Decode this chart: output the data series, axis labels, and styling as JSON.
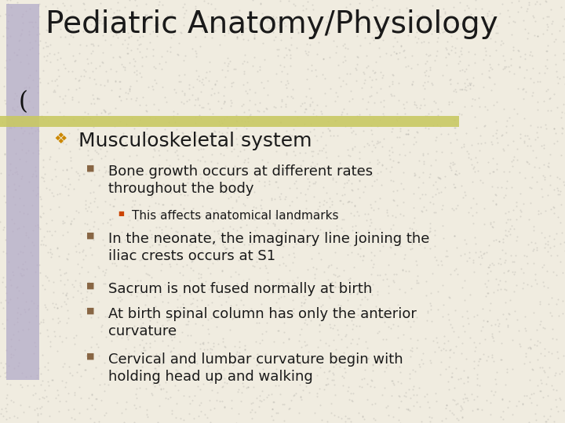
{
  "title": "Pediatric Anatomy/Physiology",
  "bg_color": "#f0ece0",
  "left_bar_color": "#b0a8c8",
  "accent_line_color": "#c8c860",
  "title_color": "#1a1a1a",
  "title_fontsize": 28,
  "bullet1_color": "#cc8800",
  "bullet2_color": "#886644",
  "bullet3_color": "#cc4400",
  "level1_text": "Musculoskeletal system",
  "level2_items": [
    "Bone growth occurs at different rates\nthroughout the body",
    "In the neonate, the imaginary line joining the\niliac crests occurs at S1",
    "Sacrum is not fused normally at birth",
    "At birth spinal column has only the anterior\ncurvature",
    "Cervical and lumbar curvature begin with\nholding head up and walking"
  ],
  "level3_item": "This affects anatomical landmarks",
  "font_family": "Comic Sans MS",
  "body_fontsize": 13,
  "level1_fontsize": 18,
  "level3_fontsize": 11
}
